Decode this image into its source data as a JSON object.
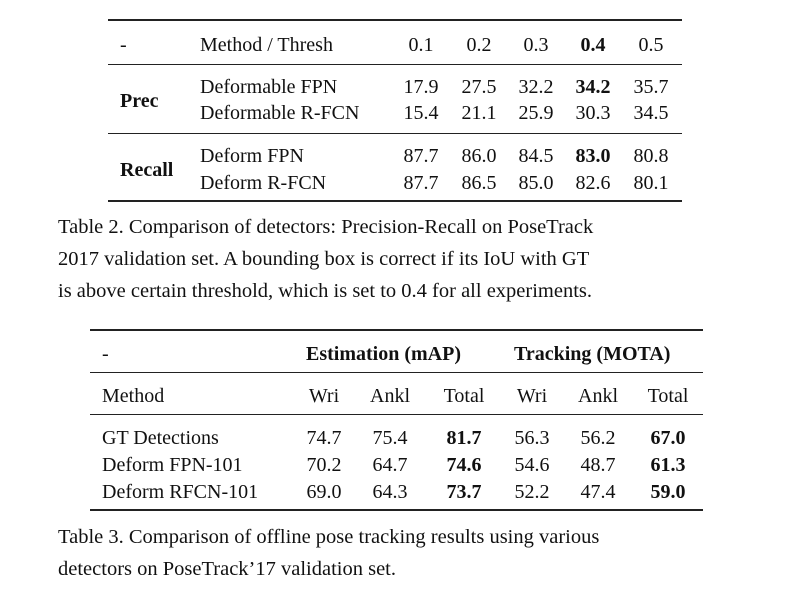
{
  "table2": {
    "header": {
      "dash": "-",
      "method": "Method / Thresh",
      "thresholds": [
        "0.1",
        "0.2",
        "0.3",
        "0.4",
        "0.5"
      ]
    },
    "groups": [
      {
        "label": "Prec",
        "rows": [
          {
            "method": "Deformable FPN",
            "values": [
              "17.9",
              "27.5",
              "32.2",
              "34.2",
              "35.7"
            ]
          },
          {
            "method": "Deformable R-FCN",
            "values": [
              "15.4",
              "21.1",
              "25.9",
              "30.3",
              "34.5"
            ]
          }
        ]
      },
      {
        "label": "Recall",
        "rows": [
          {
            "method": "Deform FPN",
            "values": [
              "87.7",
              "86.0",
              "84.5",
              "83.0",
              "80.8"
            ]
          },
          {
            "method": "Deform R-FCN",
            "values": [
              "87.7",
              "86.5",
              "85.0",
              "82.6",
              "80.1"
            ]
          }
        ]
      }
    ],
    "caption_lines": [
      "Table 2. Comparison of detectors: Precision-Recall on PoseTrack",
      "2017 validation set. A bounding box is correct if its IoU with GT",
      "is above certain threshold, which is set to 0.4 for all experiments."
    ]
  },
  "table3": {
    "header_top": {
      "dash": "-",
      "estimation": "Estimation (mAP)",
      "tracking": "Tracking (MOTA)"
    },
    "header_sub": {
      "method": "Method",
      "cols": [
        "Wri",
        "Ankl",
        "Total",
        "Wri",
        "Ankl",
        "Total"
      ]
    },
    "rows": [
      {
        "method": "GT Detections",
        "values": [
          "74.7",
          "75.4",
          "81.7",
          "56.3",
          "56.2",
          "67.0"
        ]
      },
      {
        "method": "Deform FPN-101",
        "values": [
          "70.2",
          "64.7",
          "74.6",
          "54.6",
          "48.7",
          "61.3"
        ]
      },
      {
        "method": "Deform RFCN-101",
        "values": [
          "69.0",
          "64.3",
          "73.7",
          "52.2",
          "47.4",
          "59.0"
        ]
      }
    ],
    "caption_lines": [
      "Table 3. Comparison of offline pose tracking results using various",
      "detectors on PoseTrack’17 validation set."
    ]
  }
}
